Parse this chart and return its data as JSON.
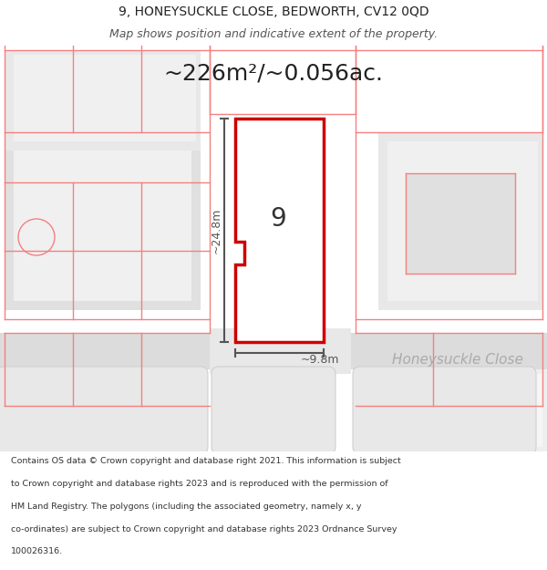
{
  "title_line1": "9, HONEYSUCKLE CLOSE, BEDWORTH, CV12 0QD",
  "title_line2": "Map shows position and indicative extent of the property.",
  "area_text": "~226m²/~0.056ac.",
  "label_number": "9",
  "dim_height": "~24.8m",
  "dim_width": "~9.8m",
  "street_label": "Honeysuckle Close",
  "footer_text": "Contains OS data © Crown copyright and database right 2021. This information is subject to Crown copyright and database rights 2023 and is reproduced with the permission of HM Land Registry. The polygons (including the associated geometry, namely x, y co-ordinates) are subject to Crown copyright and database rights 2023 Ordnance Survey 100026316.",
  "bg_color": "#ffffff",
  "map_bg": "#f5f5f5",
  "highlight_color": "#cc0000",
  "building_fill": "#e8e8e8",
  "road_fill": "#d8d8d8",
  "pink_line": "#f48080",
  "dim_line_color": "#555555",
  "street_text_color": "#aaaaaa",
  "figsize": [
    6.0,
    6.25
  ],
  "dpi": 100
}
